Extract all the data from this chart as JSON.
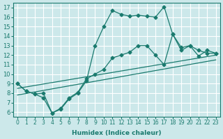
{
  "xlabel": "Humidex (Indice chaleur)",
  "bg_color": "#cce8ea",
  "grid_color": "#ffffff",
  "line_color": "#1a7a6e",
  "xlim": [
    -0.5,
    23.5
  ],
  "ylim": [
    5.5,
    17.5
  ],
  "xticks": [
    0,
    1,
    2,
    3,
    4,
    5,
    6,
    7,
    8,
    9,
    10,
    11,
    12,
    13,
    14,
    15,
    16,
    17,
    18,
    19,
    20,
    21,
    22,
    23
  ],
  "yticks": [
    6,
    7,
    8,
    9,
    10,
    11,
    12,
    13,
    14,
    15,
    16,
    17
  ],
  "line1_x": [
    0,
    1,
    2,
    3,
    4,
    5,
    6,
    7,
    8,
    9,
    10,
    11,
    12,
    13,
    14,
    15,
    16,
    17,
    18,
    19,
    20,
    21,
    22,
    23
  ],
  "line1_y": [
    9,
    8.2,
    7.9,
    8.0,
    5.9,
    6.3,
    7.4,
    8.0,
    9.3,
    13.0,
    15.0,
    16.7,
    16.3,
    16.1,
    16.2,
    16.1,
    16.0,
    17.1,
    14.2,
    12.8,
    13.0,
    12.5,
    12.2,
    12.2
  ],
  "line2_x": [
    0,
    1,
    2,
    3,
    4,
    5,
    6,
    7,
    8,
    9,
    10,
    11,
    12,
    13,
    14,
    15,
    16,
    17,
    18,
    19,
    20,
    21,
    22,
    23
  ],
  "line2_y": [
    9,
    8.2,
    7.9,
    7.5,
    5.9,
    6.4,
    7.5,
    8.1,
    9.5,
    10.0,
    10.5,
    11.7,
    12.0,
    12.3,
    13.0,
    13.0,
    12.0,
    11.0,
    14.2,
    12.5,
    13.0,
    11.9,
    12.5,
    12.2
  ],
  "line3_x": [
    0,
    23
  ],
  "line3_y": [
    8.5,
    12.0
  ],
  "line4_x": [
    0,
    23
  ],
  "line4_y": [
    7.8,
    11.5
  ]
}
